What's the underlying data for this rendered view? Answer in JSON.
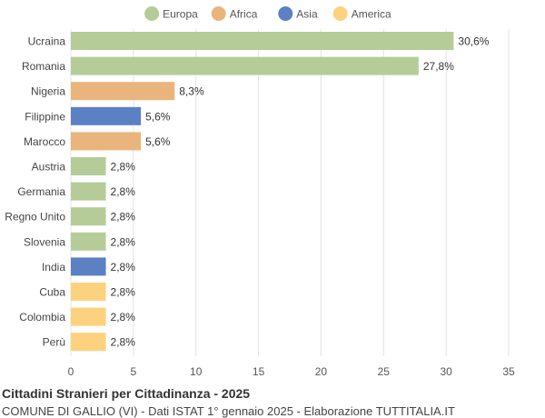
{
  "chart_data": {
    "type": "bar",
    "orientation": "horizontal",
    "categories": [
      "Ucraina",
      "Romania",
      "Nigeria",
      "Filippine",
      "Marocco",
      "Austria",
      "Germania",
      "Regno Unito",
      "Slovenia",
      "India",
      "Cuba",
      "Colombia",
      "Perù"
    ],
    "values": [
      30.6,
      27.8,
      8.3,
      5.6,
      5.6,
      2.8,
      2.8,
      2.8,
      2.8,
      2.8,
      2.8,
      2.8,
      2.8
    ],
    "value_labels": [
      "30,6%",
      "27,8%",
      "8,3%",
      "5,6%",
      "5,6%",
      "2,8%",
      "2,8%",
      "2,8%",
      "2,8%",
      "2,8%",
      "2,8%",
      "2,8%",
      "2,8%"
    ],
    "groups": [
      "Europa",
      "Europa",
      "Africa",
      "Asia",
      "Africa",
      "Europa",
      "Europa",
      "Europa",
      "Europa",
      "Asia",
      "America",
      "America",
      "America"
    ],
    "legend": [
      {
        "name": "Europa",
        "color": "#b5cc99"
      },
      {
        "name": "Africa",
        "color": "#eab47d"
      },
      {
        "name": "Asia",
        "color": "#5b80c4"
      },
      {
        "name": "America",
        "color": "#fdd27e"
      }
    ],
    "legend_position": "top-center",
    "xlim": [
      0,
      35
    ],
    "xticks": [
      0,
      5,
      10,
      15,
      20,
      25,
      30,
      35
    ],
    "grid": true
  },
  "footer": {
    "title": "Cittadini Stranieri per Cittadinanza - 2025",
    "subtitle": "COMUNE DI GALLIO (VI) - Dati ISTAT 1° gennaio 2025 - Elaborazione TUTTITALIA.IT"
  }
}
